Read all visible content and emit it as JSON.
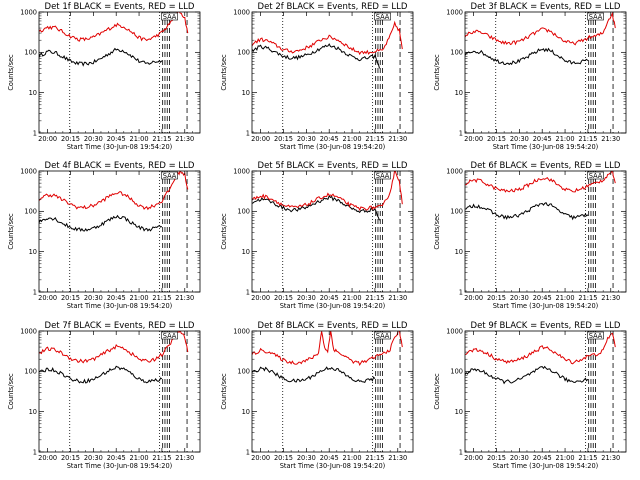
{
  "figure": {
    "xtick_labels": [
      "20:00",
      "20:15",
      "20:30",
      "20:45",
      "21:00",
      "21:15",
      "21:30"
    ],
    "ytick_labels": [
      "1",
      "10",
      "100",
      "1000"
    ],
    "xlabel": "Start Time (30-Jun-08 19:54:20)",
    "ylabel": "Counts/sec",
    "legend_text": "SAA",
    "colors": {
      "events": "#000000",
      "lld": "#e00000",
      "background": "#ffffff"
    }
  },
  "chart_data": [
    {
      "type": "line",
      "title": "Det 1f BLACK = Events, RED = LLD",
      "xlabel": "Start Time (30-Jun-08 19:54:20)",
      "ylabel": "Counts/sec",
      "x_unit": "minutes after 20:00",
      "xlim": [
        -5.67,
        100
      ],
      "ylim": [
        1,
        1000
      ],
      "y_scale": "log",
      "series": [
        {
          "name": "Events",
          "color": "#000000",
          "x": [
            -5.7,
            0,
            5,
            10,
            15,
            20,
            25,
            30,
            35,
            40,
            45,
            50,
            55,
            60,
            65,
            70,
            75
          ],
          "y": [
            80,
            105,
            98,
            78,
            60,
            52,
            52,
            56,
            70,
            92,
            118,
            110,
            82,
            60,
            52,
            58,
            62
          ]
        },
        {
          "name": "LLD",
          "color": "#e00000",
          "x": [
            -5.7,
            0,
            5,
            10,
            15,
            20,
            25,
            30,
            35,
            40,
            45,
            50,
            55,
            60,
            65,
            70,
            75,
            80,
            84,
            87,
            90,
            92
          ],
          "y": [
            330,
            420,
            410,
            320,
            250,
            210,
            210,
            235,
            295,
            380,
            480,
            440,
            320,
            230,
            200,
            240,
            310,
            500,
            900,
            1000,
            700,
            300
          ]
        }
      ],
      "vlines_dotted": [
        14.5,
        73.5
      ],
      "vlines_dashed": [
        75.5,
        77,
        78.5,
        80,
        91.5
      ]
    },
    {
      "type": "line",
      "title": "Det 2f BLACK = Events, RED = LLD",
      "xlabel": "Start Time (30-Jun-08 19:54:20)",
      "ylabel": "Counts/sec",
      "x_unit": "minutes after 20:00",
      "xlim": [
        -5.67,
        100
      ],
      "ylim": [
        1,
        1000
      ],
      "y_scale": "log",
      "series": [
        {
          "name": "Events",
          "color": "#000000",
          "x": [
            -5.7,
            0,
            5,
            10,
            15,
            20,
            25,
            30,
            35,
            40,
            45,
            50,
            55,
            60,
            65,
            70,
            75,
            78
          ],
          "y": [
            110,
            140,
            125,
            100,
            80,
            72,
            75,
            85,
            105,
            130,
            150,
            130,
            100,
            78,
            68,
            72,
            80,
            40
          ]
        },
        {
          "name": "LLD",
          "color": "#e00000",
          "x": [
            -5.7,
            0,
            5,
            10,
            15,
            20,
            25,
            30,
            35,
            40,
            45,
            50,
            55,
            60,
            65,
            70,
            75,
            80,
            85,
            88,
            91,
            93
          ],
          "y": [
            160,
            210,
            190,
            150,
            115,
            105,
            110,
            130,
            160,
            210,
            240,
            210,
            160,
            120,
            100,
            100,
            105,
            110,
            250,
            500,
            350,
            120
          ]
        }
      ],
      "vlines_dotted": [
        14.5,
        73.5
      ],
      "vlines_dashed": [
        75.5,
        77,
        78.5,
        80,
        91.5
      ]
    },
    {
      "type": "line",
      "title": "Det 3f BLACK = Events, RED = LLD",
      "xlabel": "Start Time (30-Jun-08 19:54:20)",
      "ylabel": "Counts/sec",
      "x_unit": "minutes after 20:00",
      "xlim": [
        -5.67,
        100
      ],
      "ylim": [
        1,
        1000
      ],
      "y_scale": "log",
      "series": [
        {
          "name": "Events",
          "color": "#000000",
          "x": [
            -5.7,
            0,
            5,
            10,
            15,
            20,
            25,
            30,
            35,
            40,
            45,
            50,
            55,
            60,
            65,
            70,
            75
          ],
          "y": [
            85,
            110,
            100,
            80,
            62,
            55,
            55,
            60,
            75,
            98,
            120,
            112,
            85,
            62,
            54,
            58,
            62
          ]
        },
        {
          "name": "LLD",
          "color": "#e00000",
          "x": [
            -5.7,
            0,
            5,
            10,
            15,
            20,
            25,
            30,
            35,
            40,
            45,
            50,
            55,
            60,
            65,
            70,
            75,
            80,
            85,
            88,
            91,
            93
          ],
          "y": [
            260,
            330,
            310,
            250,
            200,
            170,
            170,
            185,
            230,
            300,
            370,
            340,
            250,
            185,
            165,
            185,
            230,
            250,
            300,
            600,
            900,
            400
          ]
        }
      ],
      "vlines_dotted": [
        14.5,
        73.5
      ],
      "vlines_dashed": [
        75.5,
        77,
        78.5,
        80,
        91.5
      ]
    },
    {
      "type": "line",
      "title": "Det 4f BLACK = Events, RED = LLD",
      "xlabel": "Start Time (30-Jun-08 19:54:20)",
      "ylabel": "Counts/sec",
      "x_unit": "minutes after 20:00",
      "xlim": [
        -5.67,
        100
      ],
      "ylim": [
        1,
        1000
      ],
      "y_scale": "log",
      "series": [
        {
          "name": "Events",
          "color": "#000000",
          "x": [
            -5.7,
            0,
            5,
            10,
            15,
            20,
            25,
            30,
            35,
            40,
            45,
            50,
            55,
            60,
            65,
            70,
            75
          ],
          "y": [
            55,
            70,
            65,
            50,
            40,
            35,
            35,
            38,
            47,
            60,
            75,
            70,
            52,
            40,
            35,
            38,
            42
          ]
        },
        {
          "name": "LLD",
          "color": "#e00000",
          "x": [
            -5.7,
            0,
            5,
            10,
            15,
            20,
            25,
            30,
            35,
            40,
            45,
            50,
            55,
            60,
            65,
            70,
            75,
            80,
            84,
            87,
            90,
            92
          ],
          "y": [
            200,
            260,
            245,
            190,
            150,
            125,
            125,
            140,
            175,
            230,
            290,
            270,
            195,
            140,
            120,
            140,
            180,
            350,
            700,
            1000,
            800,
            350
          ]
        }
      ],
      "vlines_dotted": [
        14.5,
        73.5
      ],
      "vlines_dashed": [
        75.5,
        77,
        78.5,
        80,
        91.5
      ]
    },
    {
      "type": "line",
      "title": "Det 5f BLACK = Events, RED = LLD",
      "xlabel": "Start Time (30-Jun-08 19:54:20)",
      "ylabel": "Counts/sec",
      "x_unit": "minutes after 20:00",
      "xlim": [
        -5.67,
        100
      ],
      "ylim": [
        1,
        1000
      ],
      "y_scale": "log",
      "series": [
        {
          "name": "Events",
          "color": "#000000",
          "x": [
            -5.7,
            0,
            5,
            10,
            15,
            20,
            25,
            30,
            35,
            40,
            45,
            50,
            55,
            60,
            65,
            70,
            75,
            78
          ],
          "y": [
            165,
            200,
            185,
            150,
            120,
            108,
            110,
            125,
            155,
            190,
            220,
            195,
            150,
            115,
            100,
            105,
            115,
            60
          ]
        },
        {
          "name": "LLD",
          "color": "#e00000",
          "x": [
            -5.7,
            0,
            5,
            10,
            15,
            20,
            25,
            30,
            35,
            40,
            45,
            50,
            55,
            60,
            65,
            70,
            75,
            80,
            85,
            88,
            91,
            93
          ],
          "y": [
            195,
            240,
            225,
            180,
            140,
            125,
            128,
            145,
            180,
            225,
            260,
            230,
            175,
            135,
            118,
            120,
            125,
            130,
            300,
            1000,
            600,
            150
          ]
        }
      ],
      "vlines_dotted": [
        14.5,
        73.5
      ],
      "vlines_dashed": [
        75.5,
        77,
        78.5,
        80,
        91.5
      ]
    },
    {
      "type": "line",
      "title": "Det 6f BLACK = Events, RED = LLD",
      "xlabel": "Start Time (30-Jun-08 19:54:20)",
      "ylabel": "Counts/sec",
      "x_unit": "minutes after 20:00",
      "xlim": [
        -5.67,
        100
      ],
      "ylim": [
        1,
        1000
      ],
      "y_scale": "log",
      "series": [
        {
          "name": "Events",
          "color": "#000000",
          "x": [
            -5.7,
            0,
            5,
            10,
            15,
            20,
            25,
            30,
            35,
            40,
            45,
            50,
            55,
            60,
            65,
            70,
            75
          ],
          "y": [
            110,
            140,
            130,
            105,
            82,
            72,
            72,
            80,
            100,
            130,
            160,
            145,
            110,
            82,
            70,
            75,
            82
          ]
        },
        {
          "name": "LLD",
          "color": "#e00000",
          "x": [
            -5.7,
            0,
            5,
            10,
            15,
            20,
            25,
            30,
            35,
            40,
            45,
            50,
            55,
            60,
            65,
            70,
            75,
            80,
            85,
            88,
            91,
            93
          ],
          "y": [
            480,
            600,
            560,
            450,
            360,
            320,
            320,
            350,
            430,
            560,
            680,
            630,
            460,
            350,
            310,
            350,
            430,
            500,
            600,
            800,
            1000,
            500
          ]
        }
      ],
      "vlines_dotted": [
        14.5,
        73.5
      ],
      "vlines_dashed": [
        75.5,
        77,
        78.5,
        80,
        91.5
      ]
    },
    {
      "type": "line",
      "title": "Det 7f BLACK = Events, RED = LLD",
      "xlabel": "Start Time (30-Jun-08 19:54:20)",
      "ylabel": "Counts/sec",
      "x_unit": "minutes after 20:00",
      "xlim": [
        -5.67,
        100
      ],
      "ylim": [
        1,
        1000
      ],
      "y_scale": "log",
      "series": [
        {
          "name": "Events",
          "color": "#000000",
          "x": [
            -5.7,
            0,
            5,
            10,
            15,
            20,
            25,
            30,
            35,
            40,
            45,
            50,
            55,
            60,
            65,
            70,
            75
          ],
          "y": [
            90,
            115,
            105,
            85,
            65,
            57,
            57,
            63,
            80,
            103,
            125,
            115,
            87,
            64,
            56,
            60,
            65
          ]
        },
        {
          "name": "LLD",
          "color": "#e00000",
          "x": [
            -5.7,
            0,
            5,
            10,
            15,
            20,
            25,
            30,
            35,
            40,
            45,
            50,
            55,
            60,
            65,
            70,
            75,
            80,
            84,
            87,
            90,
            92
          ],
          "y": [
            280,
            360,
            340,
            270,
            210,
            180,
            180,
            200,
            250,
            330,
            410,
            380,
            275,
            200,
            175,
            200,
            260,
            450,
            800,
            1000,
            700,
            300
          ]
        }
      ],
      "vlines_dotted": [
        14.5,
        73.5
      ],
      "vlines_dashed": [
        75.5,
        77,
        78.5,
        80,
        91.5
      ]
    },
    {
      "type": "line",
      "title": "Det 8f BLACK = Events, RED = LLD",
      "xlabel": "Start Time (30-Jun-08 19:54:20)",
      "ylabel": "Counts/sec",
      "x_unit": "minutes after 20:00",
      "xlim": [
        -5.67,
        100
      ],
      "ylim": [
        1,
        1000
      ],
      "y_scale": "log",
      "series": [
        {
          "name": "Events",
          "color": "#000000",
          "x": [
            -5.7,
            0,
            5,
            10,
            15,
            20,
            25,
            30,
            35,
            40,
            45,
            50,
            55,
            60,
            65,
            70,
            75
          ],
          "y": [
            90,
            120,
            110,
            85,
            65,
            58,
            58,
            64,
            80,
            104,
            125,
            112,
            85,
            63,
            55,
            60,
            66
          ]
        },
        {
          "name": "LLD",
          "color": "#e00000",
          "x": [
            -5.7,
            0,
            5,
            10,
            15,
            20,
            25,
            30,
            35,
            38,
            40,
            42,
            44,
            46,
            48,
            50,
            55,
            60,
            65,
            70,
            75,
            80,
            85,
            88,
            91,
            93
          ],
          "y": [
            260,
            330,
            310,
            245,
            190,
            165,
            165,
            185,
            230,
            290,
            1000,
            400,
            300,
            1000,
            350,
            310,
            240,
            180,
            160,
            180,
            230,
            270,
            350,
            700,
            1000,
            400
          ]
        }
      ],
      "vlines_dotted": [
        14.5,
        73.5
      ],
      "vlines_dashed": [
        75.5,
        77,
        78.5,
        80,
        91.5
      ]
    },
    {
      "type": "line",
      "title": "Det 9f BLACK = Events, RED = LLD",
      "xlabel": "Start Time (30-Jun-08 19:54:20)",
      "ylabel": "Counts/sec",
      "x_unit": "minutes after 20:00",
      "xlim": [
        -5.67,
        100
      ],
      "ylim": [
        1,
        1000
      ],
      "y_scale": "log",
      "series": [
        {
          "name": "Events",
          "color": "#000000",
          "x": [
            -5.7,
            0,
            5,
            10,
            15,
            20,
            25,
            30,
            35,
            40,
            45,
            50,
            55,
            60,
            65,
            70,
            75
          ],
          "y": [
            88,
            112,
            102,
            82,
            64,
            56,
            56,
            62,
            78,
            100,
            122,
            112,
            85,
            63,
            55,
            59,
            64
          ]
        },
        {
          "name": "LLD",
          "color": "#e00000",
          "x": [
            -5.7,
            0,
            5,
            10,
            15,
            20,
            25,
            30,
            35,
            40,
            45,
            50,
            55,
            60,
            65,
            70,
            75,
            80,
            85,
            88,
            91,
            93
          ],
          "y": [
            270,
            345,
            325,
            260,
            205,
            175,
            175,
            195,
            240,
            315,
            390,
            360,
            265,
            195,
            170,
            190,
            240,
            260,
            320,
            650,
            900,
            400
          ]
        }
      ],
      "vlines_dotted": [
        14.5,
        73.5
      ],
      "vlines_dashed": [
        75.5,
        77,
        78.5,
        80,
        91.5
      ]
    }
  ]
}
